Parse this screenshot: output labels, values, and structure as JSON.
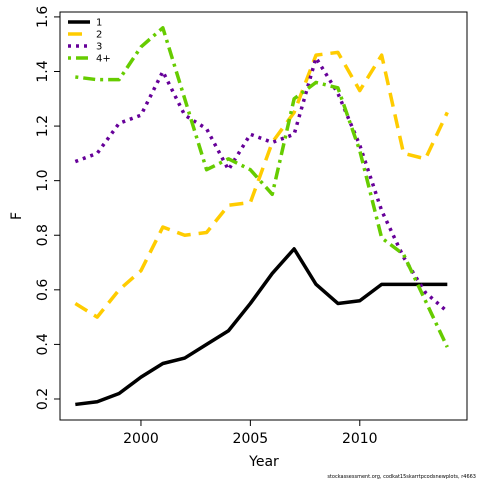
{
  "chart_data": {
    "type": "line",
    "x": [
      1997,
      1998,
      1999,
      2000,
      2001,
      2002,
      2003,
      2004,
      2005,
      2006,
      2007,
      2008,
      2009,
      2010,
      2011,
      2012,
      2013,
      2014
    ],
    "series": [
      {
        "name": "1",
        "color": "#000000",
        "linestyle": "solid",
        "values": [
          0.18,
          0.19,
          0.22,
          0.28,
          0.33,
          0.35,
          0.4,
          0.45,
          0.55,
          0.66,
          0.75,
          0.62,
          0.55,
          0.56,
          0.62,
          0.62,
          0.62,
          0.62
        ]
      },
      {
        "name": "2",
        "color": "#FFCC00",
        "linestyle": "dashed",
        "values": [
          0.55,
          0.5,
          0.6,
          0.67,
          0.83,
          0.8,
          0.81,
          0.91,
          0.92,
          1.14,
          1.25,
          1.46,
          1.47,
          1.33,
          1.46,
          1.1,
          1.08,
          1.25
        ]
      },
      {
        "name": "3",
        "color": "#660099",
        "linestyle": "dotted",
        "values": [
          1.07,
          1.1,
          1.21,
          1.24,
          1.4,
          1.24,
          1.19,
          1.04,
          1.17,
          1.14,
          1.17,
          1.45,
          1.32,
          1.13,
          0.89,
          0.72,
          0.59,
          0.52
        ]
      },
      {
        "name": "4+",
        "color": "#66CC00",
        "linestyle": "dashdot",
        "values": [
          1.38,
          1.37,
          1.37,
          1.49,
          1.56,
          1.3,
          1.04,
          1.08,
          1.04,
          0.95,
          1.3,
          1.36,
          1.34,
          1.11,
          0.79,
          0.73,
          0.56,
          0.39
        ]
      }
    ],
    "xlabel": "Year",
    "ylabel": "F",
    "xlim": [
      1996.3,
      2014.9
    ],
    "xticks": [
      2000,
      2005,
      2010
    ],
    "ylim": [
      0.123,
      1.618
    ],
    "yticks": [
      0.2,
      0.4,
      0.6,
      0.8,
      {
        "value": 1,
        "label": "1.0"
      },
      1.2,
      1.4,
      1.6
    ],
    "legend": "top-left",
    "footnote": "stockassessment.org, codkat15skarrtpcodsnewplots, r4663"
  }
}
